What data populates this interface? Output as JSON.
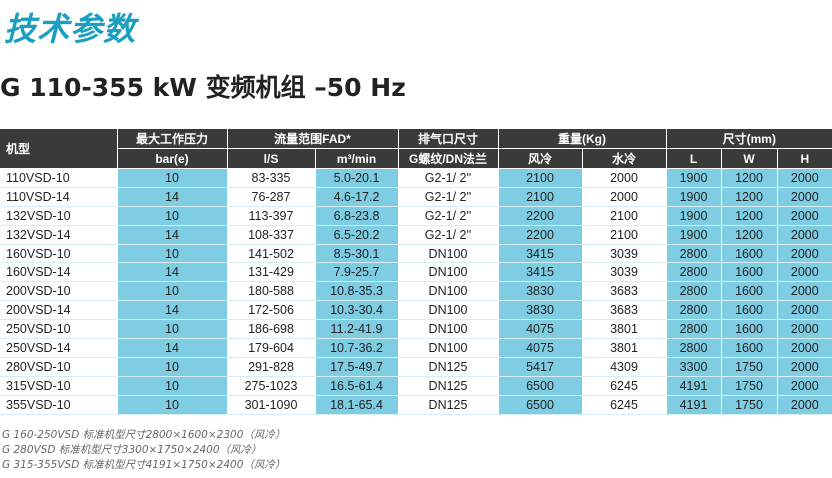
{
  "title": "技术参数",
  "subtitle": "G 110-355 kW 变频机组 –50 Hz",
  "headers": {
    "model": "机型",
    "pressure": "最大工作压力",
    "fad": "流量范围FAD*",
    "outlet": "排气口尺寸",
    "weight": "重量(Kg)",
    "dims": "尺寸(mm)",
    "bar": "bar(e)",
    "ls": "l/S",
    "m3": "m³/min",
    "thread": "G螺纹/DN法兰",
    "air": "风冷",
    "water": "水冷",
    "L": "L",
    "W": "W",
    "H": "H"
  },
  "shade_color": "#7ecde3",
  "rows": [
    [
      "110VSD-10",
      "10",
      "83-335",
      "5.0-20.1",
      "G2-1/ 2''",
      "2100",
      "2000",
      "1900",
      "1200",
      "2000"
    ],
    [
      "110VSD-14",
      "14",
      "76-287",
      "4.6-17.2",
      "G2-1/ 2''",
      "2100",
      "2000",
      "1900",
      "1200",
      "2000"
    ],
    [
      "132VSD-10",
      "10",
      "113-397",
      "6.8-23.8",
      "G2-1/ 2''",
      "2200",
      "2100",
      "1900",
      "1200",
      "2000"
    ],
    [
      "132VSD-14",
      "14",
      "108-337",
      "6.5-20.2",
      "G2-1/ 2''",
      "2200",
      "2100",
      "1900",
      "1200",
      "2000"
    ],
    [
      "160VSD-10",
      "10",
      "141-502",
      "8.5-30.1",
      "DN100",
      "3415",
      "3039",
      "2800",
      "1600",
      "2000"
    ],
    [
      "160VSD-14",
      "14",
      "131-429",
      "7.9-25.7",
      "DN100",
      "3415",
      "3039",
      "2800",
      "1600",
      "2000"
    ],
    [
      "200VSD-10",
      "10",
      "180-588",
      "10.8-35.3",
      "DN100",
      "3830",
      "3683",
      "2800",
      "1600",
      "2000"
    ],
    [
      "200VSD-14",
      "14",
      "172-506",
      "10.3-30.4",
      "DN100",
      "3830",
      "3683",
      "2800",
      "1600",
      "2000"
    ],
    [
      "250VSD-10",
      "10",
      "186-698",
      "11.2-41.9",
      "DN100",
      "4075",
      "3801",
      "2800",
      "1600",
      "2000"
    ],
    [
      "250VSD-14",
      "14",
      "179-604",
      "10.7-36.2",
      "DN100",
      "4075",
      "3801",
      "2800",
      "1600",
      "2000"
    ],
    [
      "280VSD-10",
      "10",
      "291-828",
      "17.5-49.7",
      "DN125",
      "5417",
      "4309",
      "3300",
      "1750",
      "2000"
    ],
    [
      "315VSD-10",
      "10",
      "275-1023",
      "16.5-61.4",
      "DN125",
      "6500",
      "6245",
      "4191",
      "1750",
      "2000"
    ],
    [
      "355VSD-10",
      "10",
      "301-1090",
      "18.1-65.4",
      "DN125",
      "6500",
      "6245",
      "4191",
      "1750",
      "2000"
    ]
  ],
  "notes": [
    "G 160-250VSD 标准机型尺寸2800×1600×2300（风冷）",
    "G 280VSD 标准机型尺寸3300×1750×2400（风冷）",
    "G 315-355VSD 标准机型尺寸4191×1750×2400（风冷）"
  ]
}
